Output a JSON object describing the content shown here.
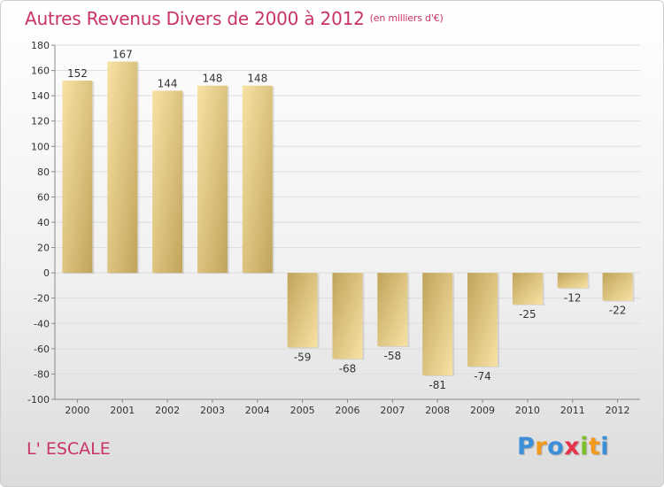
{
  "header": {
    "title": "Autres Revenus Divers de 2000 à 2012",
    "unit": "(en milliers d'€)"
  },
  "footer": {
    "commune": "L' ESCALE",
    "logo_letters": [
      "P",
      "r",
      "o",
      "x",
      "i",
      "t",
      "i"
    ],
    "logo_colors": [
      "#3a8fd8",
      "#f39a1e",
      "#3a8fd8",
      "#e6334a",
      "#7cbf2a",
      "#f39a1e",
      "#3a8fd8"
    ]
  },
  "colors": {
    "title": "#c8336a",
    "bar_dark": "#c2a65c",
    "bar_light": "#f6dc96",
    "gridline": "#dcdcdc"
  },
  "chart_data": {
    "type": "bar",
    "categories": [
      "2000",
      "2001",
      "2002",
      "2003",
      "2004",
      "2005",
      "2006",
      "2007",
      "2008",
      "2009",
      "2010",
      "2011",
      "2012"
    ],
    "values": [
      152,
      167,
      144,
      148,
      148,
      -59,
      -68,
      -58,
      -81,
      -74,
      -25,
      -12,
      -22
    ],
    "value_labels": [
      "152",
      "167",
      "144",
      "148",
      "148",
      "-59",
      "-68",
      "-58",
      "-81",
      "-74",
      "-25",
      "-12",
      "-22"
    ],
    "yticks": [
      180,
      160,
      140,
      120,
      100,
      80,
      60,
      40,
      20,
      0,
      -20,
      -40,
      -60,
      -80,
      -100
    ],
    "ytick_labels": [
      "180",
      "160",
      "140",
      "120",
      "100",
      "80",
      "60",
      "40",
      "20",
      "0",
      "-20",
      "-40",
      "-60",
      "-80",
      "-100"
    ],
    "ylim": [
      -100,
      180
    ],
    "grid": true,
    "legend": "none"
  }
}
